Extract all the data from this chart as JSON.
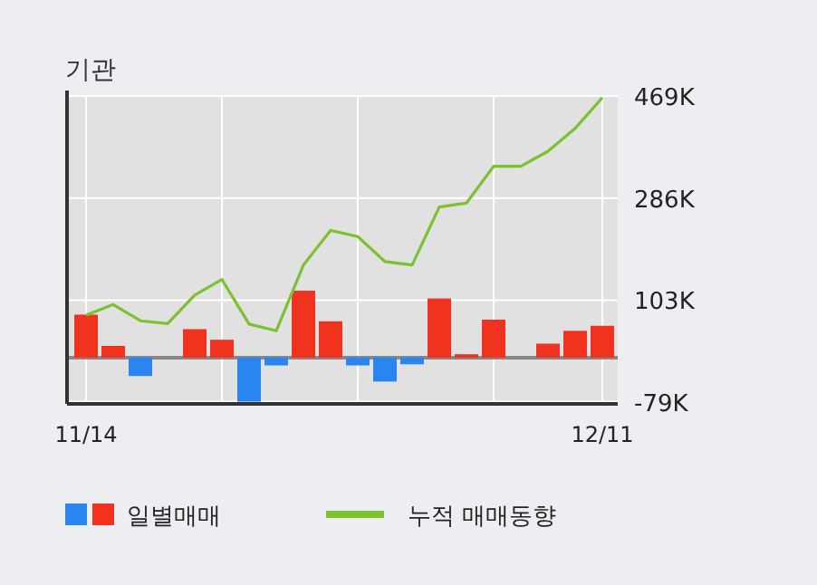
{
  "chart_data": {
    "type": "bar",
    "title": "기관",
    "categories": [
      "11/14",
      null,
      null,
      null,
      null,
      null,
      null,
      null,
      null,
      null,
      null,
      null,
      null,
      null,
      null,
      null,
      null,
      null,
      null,
      "12/11"
    ],
    "series": [
      {
        "name": "일별매매",
        "colors": [
          "#f0321e",
          "#f0321e",
          "#2b85f0",
          "#f0321e",
          "#f0321e",
          "#f0321e",
          "#2b85f0",
          "#2b85f0",
          "#f0321e",
          "#f0321e",
          "#2b85f0",
          "#2b85f0",
          "#2b85f0",
          "#f0321e",
          "#f0321e",
          "#f0321e",
          "#f0321e",
          "#f0321e",
          "#f0321e",
          "#f0321e"
        ],
        "values": [
          77000,
          21000,
          -33000,
          0,
          51000,
          32000,
          -79000,
          -14000,
          120000,
          65000,
          -14000,
          -43000,
          -12000,
          106000,
          6000,
          68000,
          0,
          25000,
          48000,
          57000
        ]
      },
      {
        "name": "누적 매매동향",
        "type": "line",
        "color": "#7cc22e",
        "values": [
          76000,
          95000,
          66000,
          61000,
          112000,
          140000,
          60000,
          48000,
          166000,
          228000,
          217000,
          172000,
          166000,
          270000,
          277000,
          343000,
          343000,
          370000,
          411000,
          466000
        ]
      }
    ],
    "ylim": [
      -83000,
      469000
    ],
    "yticks": [
      {
        "value": 469000,
        "label": "469K"
      },
      {
        "value": 286000,
        "label": "286K"
      },
      {
        "value": 103000,
        "label": "103K"
      },
      {
        "value": -79000,
        "label": "-79K"
      }
    ],
    "grid": true,
    "legend": "bottom"
  }
}
